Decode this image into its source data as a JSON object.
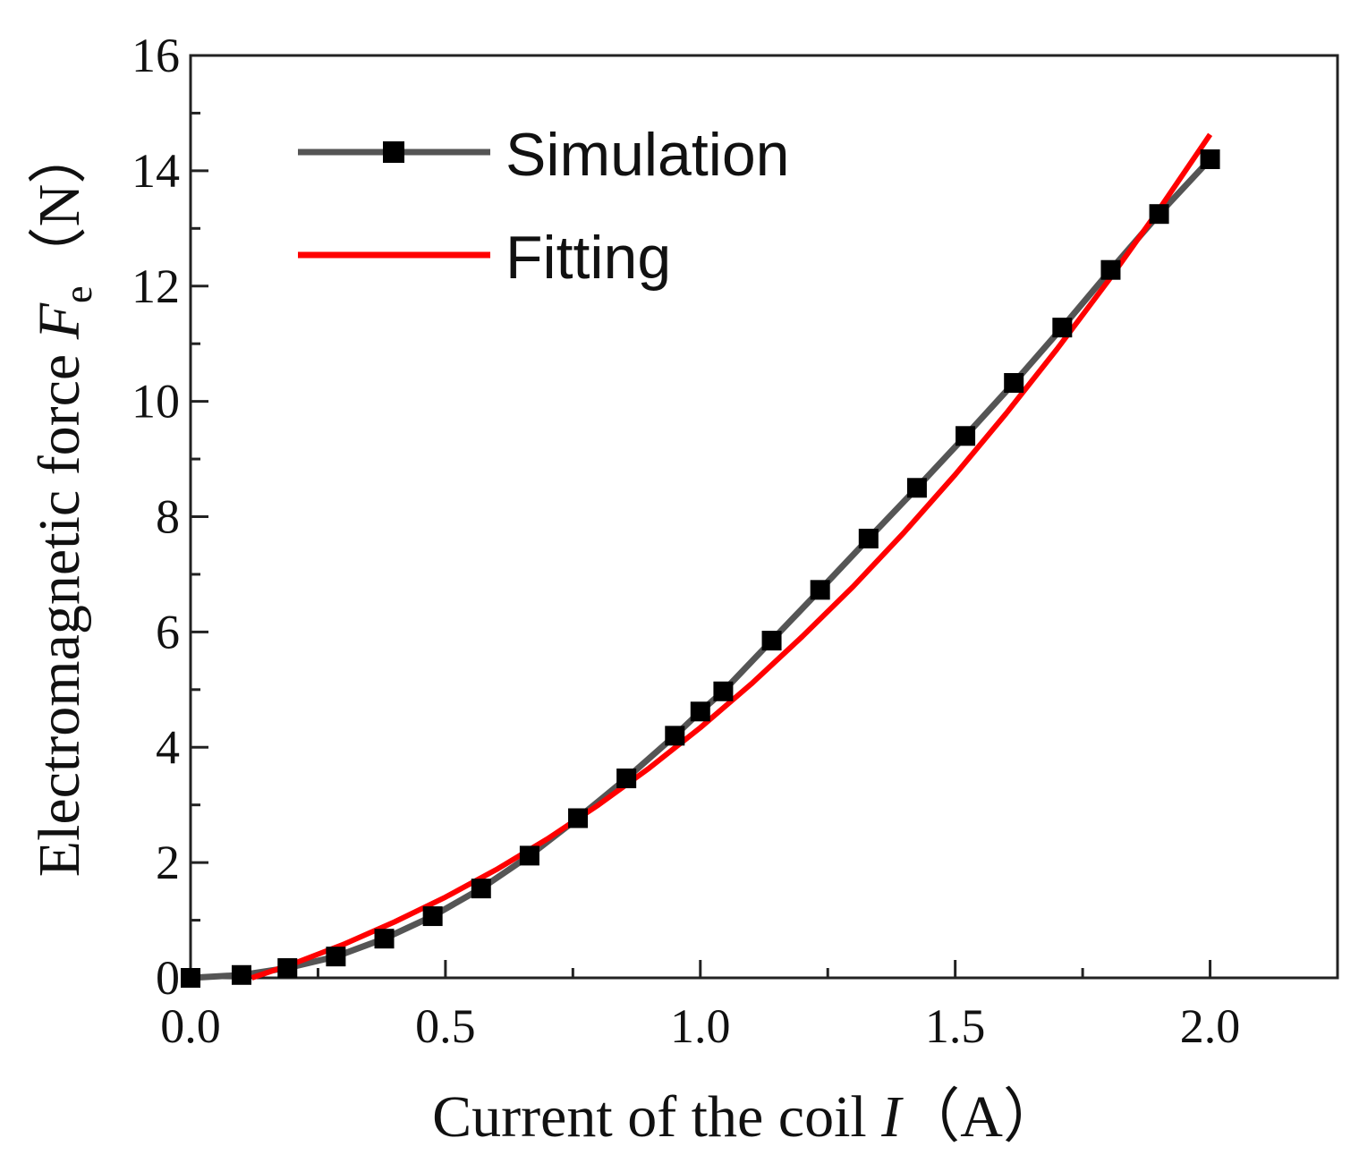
{
  "chart_data": {
    "type": "line",
    "title": "",
    "xlabel": {
      "main": "Current of the coil ",
      "var": "I",
      "unit": "（A）"
    },
    "ylabel": {
      "main": "Electromagnetic force ",
      "var": "F",
      "sub": "e",
      "unit": "（N）"
    },
    "xlim": [
      0,
      2.25
    ],
    "ylim": [
      0,
      16
    ],
    "xticks": [
      0.0,
      0.5,
      1.0,
      1.5,
      2.0
    ],
    "xtick_labels": [
      "0.0",
      "0.5",
      "1.0",
      "1.5",
      "2.0"
    ],
    "yticks": [
      0,
      2,
      4,
      6,
      8,
      10,
      12,
      14,
      16
    ],
    "ytick_labels": [
      "0",
      "2",
      "4",
      "6",
      "8",
      "10",
      "12",
      "14",
      "16"
    ],
    "grid": false,
    "legend_position": "top-left",
    "series": [
      {
        "name": "Simulation",
        "color": "#555555",
        "marker": "square",
        "x": [
          0.0,
          0.1,
          0.19,
          0.285,
          0.38,
          0.475,
          0.57,
          0.665,
          0.76,
          0.855,
          0.95,
          1.0,
          1.045,
          1.14,
          1.235,
          1.33,
          1.425,
          1.52,
          1.615,
          1.71,
          1.805,
          1.9,
          2.0
        ],
        "y": [
          0.0,
          0.05,
          0.17,
          0.37,
          0.68,
          1.07,
          1.55,
          2.12,
          2.77,
          3.46,
          4.2,
          4.62,
          4.97,
          5.85,
          6.73,
          7.62,
          8.5,
          9.4,
          10.32,
          11.28,
          12.28,
          13.25,
          14.2
        ]
      },
      {
        "name": "Fitting",
        "color": "#ff0000",
        "marker": "none",
        "x": [
          0.12,
          0.2,
          0.3,
          0.4,
          0.5,
          0.6,
          0.7,
          0.8,
          0.9,
          1.0,
          1.1,
          1.2,
          1.3,
          1.4,
          1.5,
          1.6,
          1.7,
          1.8,
          1.9,
          2.0
        ],
        "y": [
          0.0,
          0.24,
          0.58,
          0.97,
          1.4,
          1.88,
          2.41,
          3.0,
          3.64,
          4.34,
          5.1,
          5.92,
          6.79,
          7.73,
          8.73,
          9.79,
          10.91,
          12.09,
          13.33,
          14.63
        ]
      }
    ]
  }
}
